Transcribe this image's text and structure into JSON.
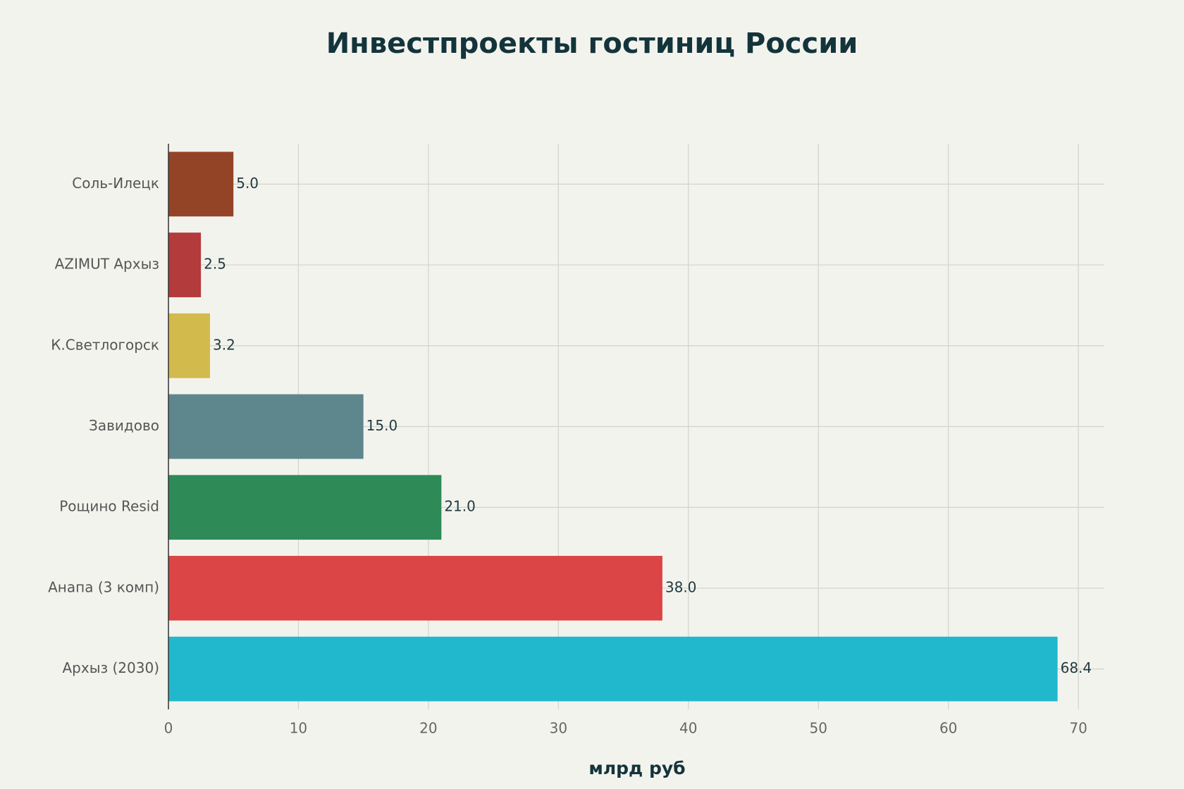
{
  "chart_data": {
    "type": "bar",
    "orientation": "horizontal",
    "title": "Инвестпроекты гостиниц России",
    "x_label": "млрд руб",
    "categories": [
      "Соль-Илецк",
      "AZIMUT Архыз",
      "К.Светлогорск",
      "Завидово",
      "Рощино Resid",
      "Анапа (3 комп)",
      "Архыз (2030)"
    ],
    "values": [
      5.0,
      2.5,
      3.2,
      15.0,
      21.0,
      38.0,
      68.4
    ],
    "value_labels": [
      "5.0",
      "2.5",
      "3.2",
      "15.0",
      "21.0",
      "38.0",
      "68.4"
    ],
    "colors": [
      "#944426",
      "#b33b3b",
      "#d2ba4c",
      "#5e878d",
      "#2e8b57",
      "#db4545",
      "#21b8cd"
    ],
    "xlim": [
      0,
      72
    ],
    "xticks": [
      0,
      10,
      20,
      30,
      40,
      50,
      60,
      70
    ],
    "grid": true
  }
}
